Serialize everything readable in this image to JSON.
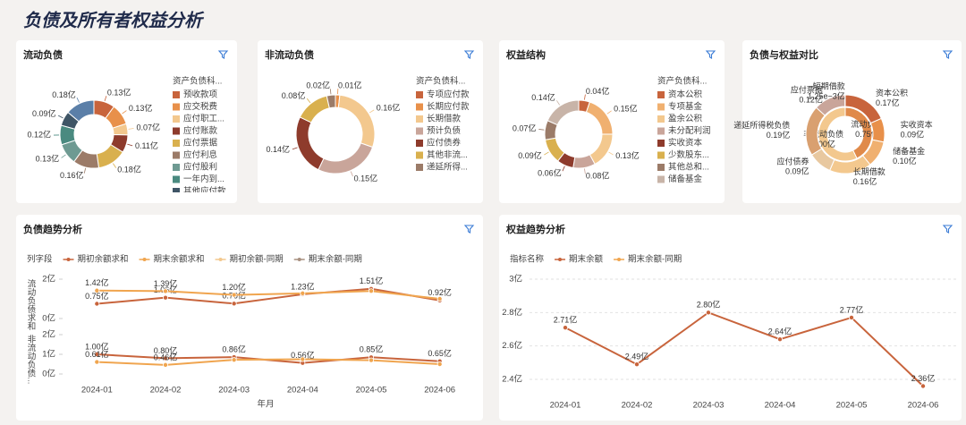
{
  "page_title": "负债及所有者权益分析",
  "chart_data": [
    {
      "type": "donut",
      "title": "流动负债",
      "legend_title": "资产负债科...",
      "categories": [
        "预收款项",
        "应交税费",
        "应付职工...",
        "应付账款",
        "应付票据",
        "应付利息",
        "应付股利",
        "一年内到...",
        "其他应付款",
        null
      ],
      "colors": [
        "#c8643c",
        "#e8904a",
        "#f3c88e",
        "#8e3b2c",
        "#d9b04e",
        "#9b7b68",
        "#6e9a92",
        "#4a8a80",
        "#3f5566",
        "#5b7fa8"
      ],
      "values": [
        0.13,
        0.13,
        0.07,
        0.11,
        0.18,
        0.16,
        0.13,
        0.12,
        0.09,
        0.18
      ],
      "value_labels": [
        "0.13亿",
        "0.13亿",
        "0.07亿",
        "0.11亿",
        "0.18亿",
        "0.16亿",
        "0.13亿",
        "0.12亿",
        "0.09亿",
        "0.18亿"
      ]
    },
    {
      "type": "donut",
      "title": "非流动负债",
      "legend_title": "资产负债科...",
      "categories": [
        "专项应付款",
        "长期应付款",
        "长期借款",
        "预计负债",
        "应付债券",
        "其他非流...",
        "递延所得..."
      ],
      "colors": [
        "#c8643c",
        "#e8904a",
        "#f3c88e",
        "#c9a59a",
        "#8e3b2c",
        "#d9b04e",
        "#9b7b68"
      ],
      "values": [
        null,
        0.01,
        0.16,
        0.15,
        0.14,
        0.08,
        0.02
      ],
      "value_labels": [
        null,
        "0.01亿",
        "0.16亿",
        "0.15亿",
        "0.14亿",
        "0.08亿",
        "0.02亿"
      ]
    },
    {
      "type": "donut",
      "title": "权益结构",
      "legend_title": "资产负债科...",
      "categories": [
        "资本公积",
        "专项基金",
        "盈余公积",
        "未分配利润",
        "实收资本",
        "少数股东...",
        "其他总和...",
        "储备基金"
      ],
      "colors": [
        "#c8643c",
        "#f0b070",
        "#f3c88e",
        "#c9a59a",
        "#8e3b2c",
        "#d9b04e",
        "#9b7b68",
        "#c8b4a8"
      ],
      "values": [
        0.04,
        0.15,
        0.13,
        0.08,
        0.06,
        0.09,
        0.07,
        0.14
      ],
      "value_labels": [
        "0.04亿",
        "0.15亿",
        "0.13亿",
        "0.08亿",
        "0.06亿",
        "0.09亿",
        "0.07亿",
        "0.14亿"
      ]
    },
    {
      "type": "sunburst",
      "title": "负债与权益对比",
      "inner": {
        "categories": [
          "流动负债",
          "非流动负债"
        ],
        "colors": [
          "#e08a4a",
          "#f3c88e"
        ],
        "values": [
          0.75,
          1.0
        ],
        "value_labels": [
          "0.75亿",
          "1.00亿"
        ]
      },
      "outer": {
        "categories": [
          "资本公积",
          "实收资本",
          "储备基金",
          "长期借款",
          "应付债券",
          "递延所得税负债",
          "应付票据",
          "短期借款"
        ],
        "colors": [
          "#c8643c",
          "#e8904a",
          "#f0b070",
          "#f3c88e",
          "#e8c8a0",
          "#d9a070",
          "#c9a59a",
          "#8e3b2c"
        ],
        "values": [
          0.17,
          0.09,
          0.1,
          0.16,
          0.09,
          0.19,
          0.12,
          0.00125
        ],
        "value_labels": [
          "0.17亿",
          "0.09亿",
          "0.10亿",
          "0.16亿",
          "0.09亿",
          "0.19亿",
          "0.12亿",
          "1.25e−3亿"
        ]
      }
    },
    {
      "type": "line",
      "title": "负债趋势分析",
      "legend_title": "列字段",
      "xlabel": "年月",
      "x": [
        "2024-01",
        "2024-02",
        "2024-03",
        "2024-04",
        "2024-05",
        "2024-06"
      ],
      "series": [
        {
          "name": "期初余额求和",
          "color": "#c8643c"
        },
        {
          "name": "期末余额求和",
          "color": "#f0a54f"
        },
        {
          "name": "期初余额-同期",
          "color": "#f3c88e"
        },
        {
          "name": "期末余额-同期",
          "color": "#a89080"
        }
      ],
      "grid": false,
      "subplots": [
        {
          "ylabel": "流动负债求和",
          "ylim": [
            0,
            2
          ],
          "yticks": [
            {
              "value": 0,
              "label": "0亿"
            },
            {
              "value": 2,
              "label": "2亿"
            }
          ],
          "series": [
            {
              "values": [
                0.75,
                1.06,
                0.76,
                1.23,
                1.51,
                0.92
              ],
              "value_labels": [
                "0.75亿",
                "1.06亿",
                "0.76亿",
                "1.23亿",
                "1.51亿",
                "0.92亿"
              ]
            },
            {
              "values": [
                1.42,
                1.39,
                1.2,
                1.28,
                1.4,
                1.0
              ],
              "value_labels": [
                "1.42亿",
                "1.39亿",
                "1.20亿",
                null,
                null,
                null
              ]
            }
          ]
        },
        {
          "ylabel": "非流动负债...",
          "ylim": [
            0,
            2
          ],
          "yticks": [
            {
              "value": 0,
              "label": "0亿"
            },
            {
              "value": 1,
              "label": "1亿"
            },
            {
              "value": 2,
              "label": "2亿"
            }
          ],
          "series": [
            {
              "values": [
                1.0,
                0.8,
                0.86,
                0.56,
                0.85,
                0.65
              ],
              "value_labels": [
                "1.00亿",
                "0.80亿",
                "0.86亿",
                "0.56亿",
                "0.85亿",
                "0.65亿"
              ]
            },
            {
              "values": [
                0.61,
                0.46,
                0.72,
                0.75,
                0.7,
                0.5
              ],
              "value_labels": [
                "0.61亿",
                "0.46亿",
                null,
                null,
                null,
                null
              ]
            }
          ]
        }
      ]
    },
    {
      "type": "line",
      "title": "权益趋势分析",
      "legend_title": "指标名称",
      "x": [
        "2024-01",
        "2024-02",
        "2024-03",
        "2024-04",
        "2024-05",
        "2024-06"
      ],
      "series": [
        {
          "name": "期末余额",
          "color": "#c8643c",
          "values": [
            2.71,
            2.49,
            2.8,
            2.64,
            2.77,
            2.36
          ],
          "value_labels": [
            "2.71亿",
            "2.49亿",
            "2.80亿",
            "2.64亿",
            "2.77亿",
            "2.36亿"
          ]
        },
        {
          "name": "期末余额-同期",
          "color": "#f0a54f"
        }
      ],
      "ylim": [
        2.3,
        3
      ],
      "yticks": [
        {
          "value": 2.4,
          "label": "2.4亿"
        },
        {
          "value": 2.6,
          "label": "2.6亿"
        },
        {
          "value": 2.8,
          "label": "2.8亿"
        },
        {
          "value": 3,
          "label": "3亿"
        }
      ],
      "grid": true
    }
  ]
}
